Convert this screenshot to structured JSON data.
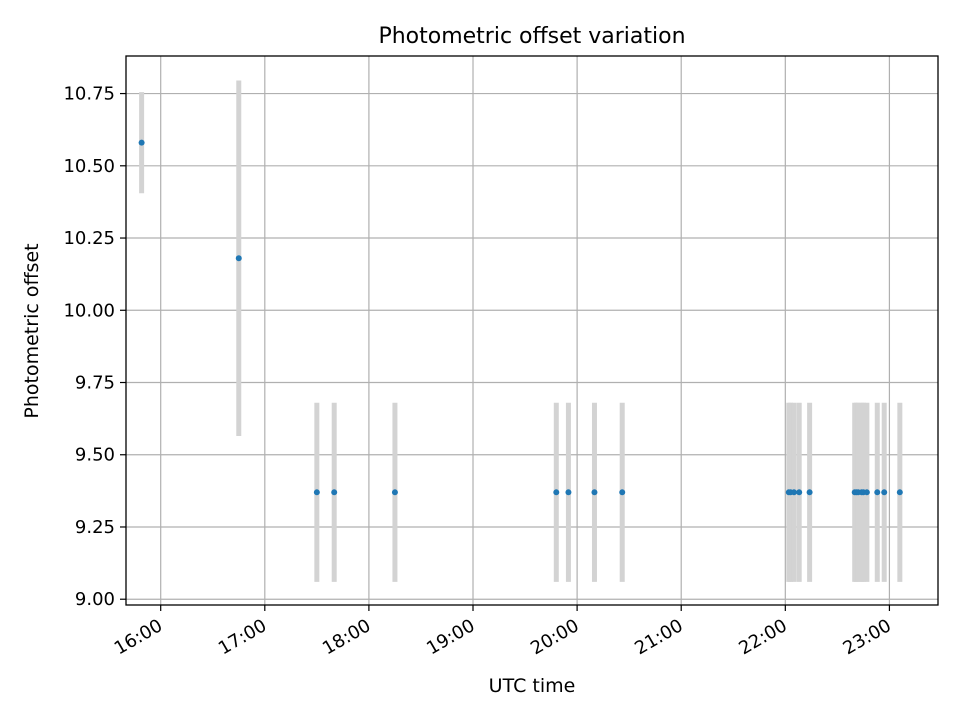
{
  "chart_data": {
    "type": "scatter",
    "title": "Photometric offset variation",
    "xlabel": "UTC time",
    "ylabel": "Photometric offset",
    "x_tick_labels": [
      "16:00",
      "17:00",
      "18:00",
      "19:00",
      "20:00",
      "21:00",
      "22:00",
      "23:00"
    ],
    "x_tick_values": [
      "16:00",
      "17:00",
      "18:00",
      "19:00",
      "20:00",
      "21:00",
      "22:00",
      "23:00"
    ],
    "y_tick_labels": [
      "9.00",
      "9.25",
      "9.50",
      "9.75",
      "10.00",
      "10.25",
      "10.50",
      "10.75"
    ],
    "y_tick_values": [
      9.0,
      9.25,
      9.5,
      9.75,
      10.0,
      10.25,
      10.5,
      10.75
    ],
    "xlim": [
      "15:40",
      "23:28"
    ],
    "ylim": [
      8.98,
      10.88
    ],
    "grid": true,
    "series": [
      {
        "marker_color": "#1f77b4",
        "errorbar_color": "#d3d3d3",
        "points": [
          {
            "x": "15:49",
            "y": 10.58,
            "yerr": 0.175
          },
          {
            "x": "16:45",
            "y": 10.18,
            "yerr": 0.615
          },
          {
            "x": "17:30",
            "y": 9.37,
            "yerr": 0.31
          },
          {
            "x": "17:40",
            "y": 9.37,
            "yerr": 0.31
          },
          {
            "x": "18:15",
            "y": 9.37,
            "yerr": 0.31
          },
          {
            "x": "19:48",
            "y": 9.37,
            "yerr": 0.31
          },
          {
            "x": "19:55",
            "y": 9.37,
            "yerr": 0.31
          },
          {
            "x": "20:10",
            "y": 9.37,
            "yerr": 0.31
          },
          {
            "x": "20:26",
            "y": 9.37,
            "yerr": 0.31
          },
          {
            "x": "22:02",
            "y": 9.37,
            "yerr": 0.31
          },
          {
            "x": "22:03",
            "y": 9.37,
            "yerr": 0.31
          },
          {
            "x": "22:05",
            "y": 9.37,
            "yerr": 0.31
          },
          {
            "x": "22:08",
            "y": 9.37,
            "yerr": 0.31
          },
          {
            "x": "22:14",
            "y": 9.37,
            "yerr": 0.31
          },
          {
            "x": "22:40",
            "y": 9.37,
            "yerr": 0.31
          },
          {
            "x": "22:41",
            "y": 9.37,
            "yerr": 0.31
          },
          {
            "x": "22:42",
            "y": 9.37,
            "yerr": 0.31
          },
          {
            "x": "22:44",
            "y": 9.37,
            "yerr": 0.31
          },
          {
            "x": "22:45",
            "y": 9.37,
            "yerr": 0.31
          },
          {
            "x": "22:47",
            "y": 9.37,
            "yerr": 0.31
          },
          {
            "x": "22:53",
            "y": 9.37,
            "yerr": 0.31
          },
          {
            "x": "22:57",
            "y": 9.37,
            "yerr": 0.31
          },
          {
            "x": "23:06",
            "y": 9.37,
            "yerr": 0.31
          }
        ]
      }
    ]
  }
}
